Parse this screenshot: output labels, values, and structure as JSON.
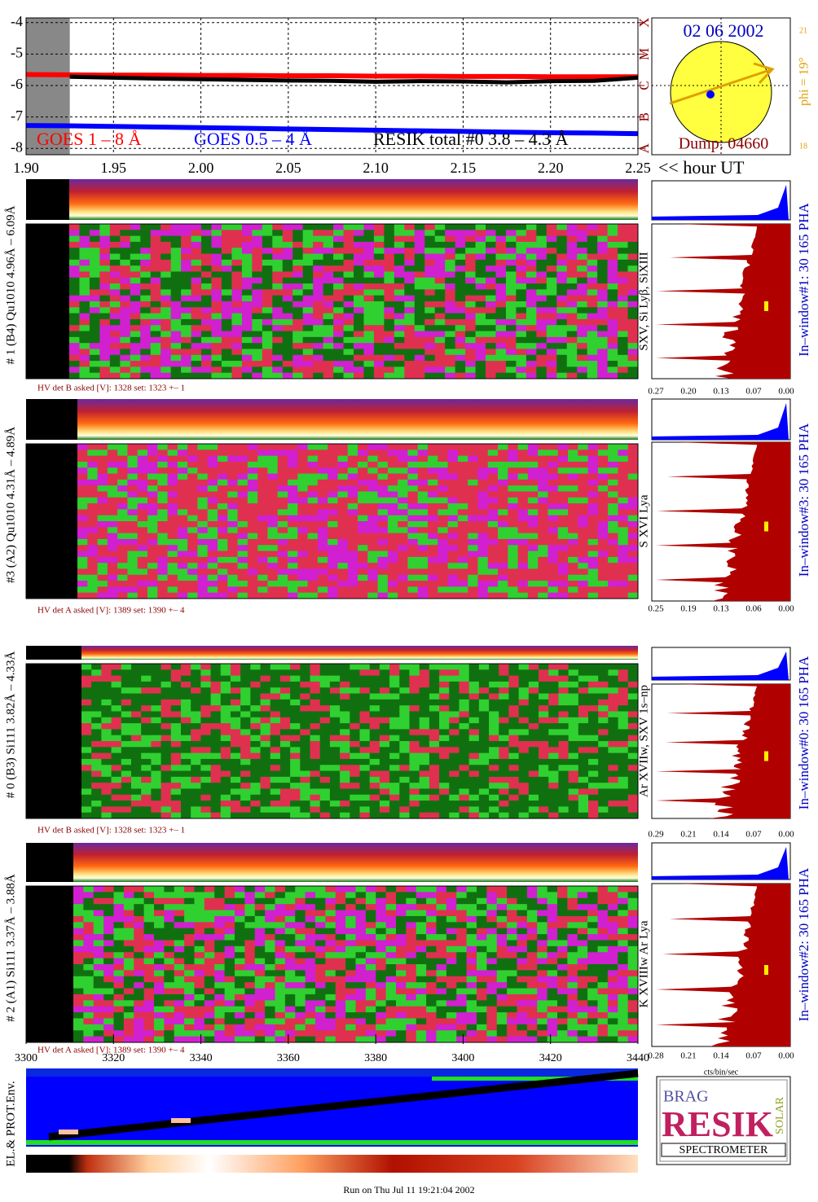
{
  "chart_data": [
    {
      "type": "line",
      "xlim": [
        1.9,
        2.25
      ],
      "xticks": [
        {
          "value": 1.9,
          "label": "1.90"
        },
        1.95,
        {
          "value": 2.0,
          "label": "2.00"
        },
        2.05,
        {
          "value": 2.1,
          "label": "2.10"
        },
        2.15,
        {
          "value": 2.2,
          "label": "2.20"
        },
        2.25
      ],
      "ylim": [
        -8.2,
        -3.85
      ],
      "yticks": [
        -4,
        -5,
        -6,
        -7,
        -8
      ],
      "y2lim": [
        -8.2,
        -3.85
      ],
      "y2ticks": [
        {
          "value": -8,
          "label": "A"
        },
        {
          "value": -7,
          "label": "B"
        },
        {
          "value": -6,
          "label": "C"
        },
        {
          "value": -5,
          "label": "M"
        },
        {
          "value": -4,
          "label": "X"
        }
      ],
      "x": [
        1.9,
        1.925,
        1.95,
        1.975,
        2.0,
        2.025,
        2.05,
        2.075,
        2.1,
        2.125,
        2.15,
        2.175,
        2.2,
        2.225,
        2.25
      ],
      "series": [
        {
          "name": "GOES 1 – 8 Å",
          "color": "#ff0000",
          "values": [
            -5.65,
            -5.66,
            -5.67,
            -5.67,
            -5.68,
            -5.68,
            -5.69,
            -5.69,
            -5.7,
            -5.7,
            -5.71,
            -5.71,
            -5.72,
            -5.72,
            -5.72
          ]
        },
        {
          "name": "GOES 0.5 – 4 Å",
          "color": "#0000ff",
          "values": [
            -7.27,
            -7.28,
            -7.3,
            -7.32,
            -7.34,
            -7.36,
            -7.38,
            -7.4,
            -7.42,
            -7.44,
            -7.46,
            -7.48,
            -7.5,
            -7.51,
            -7.53
          ]
        },
        {
          "name": "RESIK total #0  3.8 – 4.3 Å",
          "color": "#000000",
          "values": [
            null,
            -5.72,
            -5.75,
            -5.78,
            -5.8,
            -5.82,
            -5.84,
            -5.85,
            -5.88,
            -5.86,
            -5.87,
            -5.9,
            -5.86,
            -5.85,
            -5.75
          ]
        }
      ],
      "x_annotation": "<< hour UT",
      "legend": "bottom"
    }
  ],
  "sun": {
    "date": "02 06 2002",
    "dump": "Dump: 04660",
    "phi": "phi = 19°",
    "lat_top": "21",
    "lat_bottom": "18"
  },
  "panels": [
    {
      "label": "# 1 (B4) Qu1010 4.96Å – 6.09Å",
      "lines": "SXV, Si Lyβ, SiXIII",
      "hv": "HV det B asked [V]:  1328 set:  1323 +–   1",
      "pha_label": "In–window#1:   30 165 PHA",
      "pha_ticks": [
        "0.27",
        "0.20",
        "0.13",
        "0.07",
        "0.00"
      ]
    },
    {
      "label": "#3 (A2) Qu1010  4.31Å – 4.89Å",
      "lines": "S XVI Lya",
      "hv": "HV det A asked [V]:  1389 set:  1390 +–   4",
      "pha_label": "In–window#3:   30 165 PHA",
      "pha_ticks": [
        "0.25",
        "0.19",
        "0.13",
        "0.06",
        "0.00"
      ]
    },
    {
      "label": "# 0 (B3) Si111  3.82Å – 4.33Å",
      "lines": "Ar XVIIw, SXV 1s–np",
      "hv": "HV det B asked [V]:  1328 set:  1323 +–   1",
      "pha_label": "In–window#0:   30 165 PHA",
      "pha_ticks": [
        "0.29",
        "0.21",
        "0.14",
        "0.07",
        "0.00"
      ]
    },
    {
      "label": "# 2 (A1) Si111  3.37Å – 3.88Å",
      "lines": "K XVIIIw  Ar Lya",
      "hv": "HV det A asked [V]:  1389 set:  1390 +–   4",
      "pha_label": "In–window#2:   30 165 PHA",
      "pha_ticks": [
        "0.28",
        "0.21",
        "0.14",
        "0.07",
        "0.00"
      ]
    }
  ],
  "bin_axis": {
    "xlim": [
      3300,
      3440
    ],
    "xticks": [
      3300,
      3320,
      3340,
      3360,
      3380,
      3400,
      3420,
      3440
    ]
  },
  "pha_unit": "cts/bin/sec",
  "env_label": "EL.& PROT.Env.",
  "logo": {
    "brag": "BRAG",
    "resik": "RESIK",
    "solar": "SOLAR",
    "spectrometer": "SPECTROMETER"
  },
  "footer": "Run on Thu Jul 11 19:21:04 2002"
}
